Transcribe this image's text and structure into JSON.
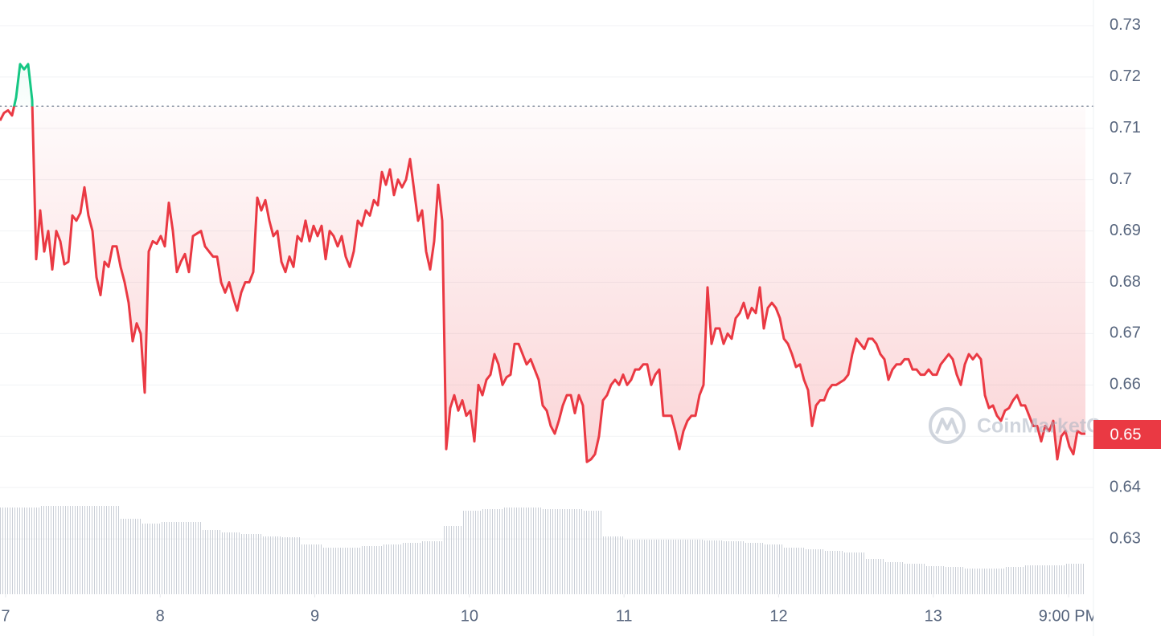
{
  "chart_data": {
    "type": "line",
    "xlim": [
      6.964,
      14.036
    ],
    "ylim": [
      0.62,
      0.735
    ],
    "xticks": [
      7,
      8,
      9,
      10,
      11,
      12,
      13,
      {
        "value": 13.875,
        "label": "9:00 PM"
      }
    ],
    "yticks": [
      0.63,
      0.64,
      0.65,
      0.66,
      0.67,
      0.68,
      0.69,
      0.7,
      0.71,
      0.72,
      0.73
    ],
    "grid": true,
    "baseline": 0.7143,
    "price_label": "0.65",
    "watermark": "CoinMarketCap",
    "x": [
      6.964,
      6.99,
      7.016,
      7.042,
      7.068,
      7.094,
      7.12,
      7.146,
      7.172,
      7.198,
      7.224,
      7.25,
      7.276,
      7.302,
      7.328,
      7.354,
      7.38,
      7.406,
      7.432,
      7.458,
      7.484,
      7.51,
      7.536,
      7.562,
      7.588,
      7.614,
      7.64,
      7.666,
      7.692,
      7.718,
      7.744,
      7.77,
      7.796,
      7.822,
      7.848,
      7.874,
      7.9,
      7.926,
      7.952,
      7.978,
      8.004,
      8.03,
      8.056,
      8.082,
      8.108,
      8.134,
      8.16,
      8.186,
      8.212,
      8.238,
      8.264,
      8.29,
      8.316,
      8.342,
      8.368,
      8.394,
      8.42,
      8.446,
      8.472,
      8.498,
      8.524,
      8.55,
      8.576,
      8.602,
      8.628,
      8.654,
      8.68,
      8.706,
      8.732,
      8.758,
      8.784,
      8.81,
      8.836,
      8.862,
      8.888,
      8.914,
      8.94,
      8.966,
      8.992,
      9.018,
      9.044,
      9.07,
      9.096,
      9.122,
      9.148,
      9.174,
      9.2,
      9.226,
      9.252,
      9.278,
      9.304,
      9.33,
      9.356,
      9.382,
      9.408,
      9.434,
      9.46,
      9.486,
      9.512,
      9.538,
      9.564,
      9.59,
      9.616,
      9.642,
      9.668,
      9.694,
      9.72,
      9.746,
      9.772,
      9.798,
      9.824,
      9.85,
      9.876,
      9.902,
      9.928,
      9.954,
      9.98,
      10.006,
      10.032,
      10.058,
      10.084,
      10.11,
      10.136,
      10.162,
      10.188,
      10.214,
      10.24,
      10.266,
      10.292,
      10.318,
      10.344,
      10.37,
      10.396,
      10.422,
      10.448,
      10.474,
      10.5,
      10.526,
      10.552,
      10.578,
      10.604,
      10.63,
      10.656,
      10.682,
      10.708,
      10.734,
      10.76,
      10.786,
      10.812,
      10.838,
      10.864,
      10.89,
      10.916,
      10.942,
      10.968,
      10.994,
      11.02,
      11.046,
      11.072,
      11.098,
      11.124,
      11.15,
      11.176,
      11.202,
      11.228,
      11.254,
      11.28,
      11.306,
      11.332,
      11.358,
      11.384,
      11.41,
      11.436,
      11.462,
      11.488,
      11.514,
      11.54,
      11.566,
      11.592,
      11.618,
      11.644,
      11.67,
      11.696,
      11.722,
      11.748,
      11.774,
      11.8,
      11.826,
      11.852,
      11.878,
      11.904,
      11.93,
      11.956,
      11.982,
      12.008,
      12.034,
      12.06,
      12.086,
      12.112,
      12.138,
      12.164,
      12.19,
      12.216,
      12.242,
      12.268,
      12.294,
      12.32,
      12.346,
      12.372,
      12.398,
      12.424,
      12.45,
      12.476,
      12.502,
      12.528,
      12.554,
      12.58,
      12.606,
      12.632,
      12.658,
      12.684,
      12.71,
      12.736,
      12.762,
      12.788,
      12.814,
      12.84,
      12.866,
      12.892,
      12.918,
      12.944,
      12.97,
      12.996,
      13.022,
      13.048,
      13.074,
      13.1,
      13.126,
      13.152,
      13.178,
      13.204,
      13.23,
      13.256,
      13.282,
      13.308,
      13.334,
      13.36,
      13.386,
      13.412,
      13.438,
      13.464,
      13.49,
      13.516,
      13.542,
      13.568,
      13.594,
      13.62,
      13.646,
      13.672,
      13.698,
      13.724,
      13.75,
      13.776,
      13.802,
      13.828,
      13.854,
      13.88,
      13.906,
      13.932,
      13.958,
      13.984
    ],
    "series": [
      {
        "color": "#ea3943",
        "up_color": "#16c784",
        "values": [
          0.7115,
          0.713,
          0.7135,
          0.7125,
          0.716,
          0.7225,
          0.7215,
          0.7225,
          0.7155,
          0.6845,
          0.694,
          0.686,
          0.69,
          0.6825,
          0.69,
          0.688,
          0.6835,
          0.684,
          0.693,
          0.692,
          0.6935,
          0.6985,
          0.693,
          0.69,
          0.681,
          0.6775,
          0.684,
          0.683,
          0.687,
          0.687,
          0.683,
          0.68,
          0.676,
          0.6685,
          0.672,
          0.67,
          0.6585,
          0.686,
          0.688,
          0.6875,
          0.689,
          0.687,
          0.6955,
          0.69,
          0.682,
          0.684,
          0.6855,
          0.682,
          0.689,
          0.6895,
          0.69,
          0.687,
          0.686,
          0.685,
          0.685,
          0.68,
          0.678,
          0.68,
          0.677,
          0.6745,
          0.678,
          0.68,
          0.68,
          0.682,
          0.6965,
          0.694,
          0.696,
          0.692,
          0.689,
          0.69,
          0.684,
          0.682,
          0.685,
          0.683,
          0.689,
          0.688,
          0.692,
          0.688,
          0.691,
          0.689,
          0.691,
          0.6845,
          0.69,
          0.689,
          0.687,
          0.689,
          0.685,
          0.683,
          0.686,
          0.692,
          0.691,
          0.694,
          0.693,
          0.696,
          0.695,
          0.7015,
          0.699,
          0.702,
          0.697,
          0.7,
          0.6985,
          0.7,
          0.704,
          0.698,
          0.692,
          0.694,
          0.686,
          0.6825,
          0.688,
          0.699,
          0.692,
          0.6475,
          0.6555,
          0.658,
          0.655,
          0.657,
          0.654,
          0.655,
          0.649,
          0.66,
          0.658,
          0.661,
          0.662,
          0.666,
          0.664,
          0.66,
          0.6615,
          0.662,
          0.668,
          0.668,
          0.666,
          0.664,
          0.665,
          0.663,
          0.661,
          0.656,
          0.655,
          0.652,
          0.6505,
          0.653,
          0.656,
          0.658,
          0.658,
          0.6545,
          0.658,
          0.656,
          0.645,
          0.6455,
          0.6465,
          0.65,
          0.657,
          0.658,
          0.66,
          0.661,
          0.66,
          0.662,
          0.66,
          0.661,
          0.663,
          0.663,
          0.664,
          0.664,
          0.66,
          0.662,
          0.663,
          0.654,
          0.654,
          0.654,
          0.651,
          0.6475,
          0.651,
          0.653,
          0.654,
          0.654,
          0.658,
          0.66,
          0.679,
          0.668,
          0.671,
          0.671,
          0.668,
          0.67,
          0.669,
          0.673,
          0.674,
          0.676,
          0.673,
          0.675,
          0.674,
          0.679,
          0.671,
          0.675,
          0.676,
          0.675,
          0.673,
          0.669,
          0.668,
          0.666,
          0.6635,
          0.664,
          0.661,
          0.659,
          0.652,
          0.656,
          0.657,
          0.657,
          0.659,
          0.66,
          0.66,
          0.6605,
          0.661,
          0.662,
          0.666,
          0.669,
          0.668,
          0.667,
          0.669,
          0.669,
          0.668,
          0.666,
          0.665,
          0.661,
          0.663,
          0.664,
          0.664,
          0.665,
          0.665,
          0.663,
          0.663,
          0.662,
          0.662,
          0.663,
          0.662,
          0.662,
          0.664,
          0.665,
          0.666,
          0.665,
          0.662,
          0.66,
          0.664,
          0.666,
          0.665,
          0.666,
          0.665,
          0.658,
          0.6555,
          0.656,
          0.654,
          0.653,
          0.655,
          0.6555,
          0.657,
          0.658,
          0.656,
          0.656,
          0.654,
          0.652,
          0.652,
          0.649,
          0.652,
          0.651,
          0.653,
          0.6455,
          0.65,
          0.651,
          0.648,
          0.6465,
          0.651,
          0.6505,
          0.6505
        ]
      }
    ],
    "volume": {
      "color": "#c9ced6",
      "ylim": [
        0,
        120
      ],
      "x": [
        6.964,
        7.094,
        7.224,
        7.354,
        7.484,
        7.614,
        7.744,
        7.874,
        8.004,
        8.134,
        8.264,
        8.394,
        8.524,
        8.654,
        8.784,
        8.914,
        9.044,
        9.174,
        9.304,
        9.434,
        9.564,
        9.694,
        9.824,
        9.954,
        10.084,
        10.214,
        10.344,
        10.474,
        10.604,
        10.734,
        10.864,
        10.994,
        11.124,
        11.254,
        11.384,
        11.514,
        11.644,
        11.774,
        11.904,
        12.034,
        12.164,
        12.294,
        12.424,
        12.554,
        12.684,
        12.814,
        12.944,
        13.074,
        13.204,
        13.334,
        13.464,
        13.594,
        13.724,
        13.854
      ],
      "values": [
        108,
        108,
        110,
        110,
        110,
        110,
        94,
        88,
        90,
        90,
        80,
        77,
        75,
        72,
        71,
        62,
        58,
        58,
        60,
        62,
        64,
        66,
        85,
        104,
        106,
        108,
        108,
        106,
        106,
        104,
        72,
        68,
        68,
        68,
        68,
        67,
        66,
        64,
        62,
        58,
        56,
        54,
        52,
        44,
        40,
        38,
        35,
        34,
        32,
        32,
        34,
        36,
        36,
        38
      ]
    }
  }
}
